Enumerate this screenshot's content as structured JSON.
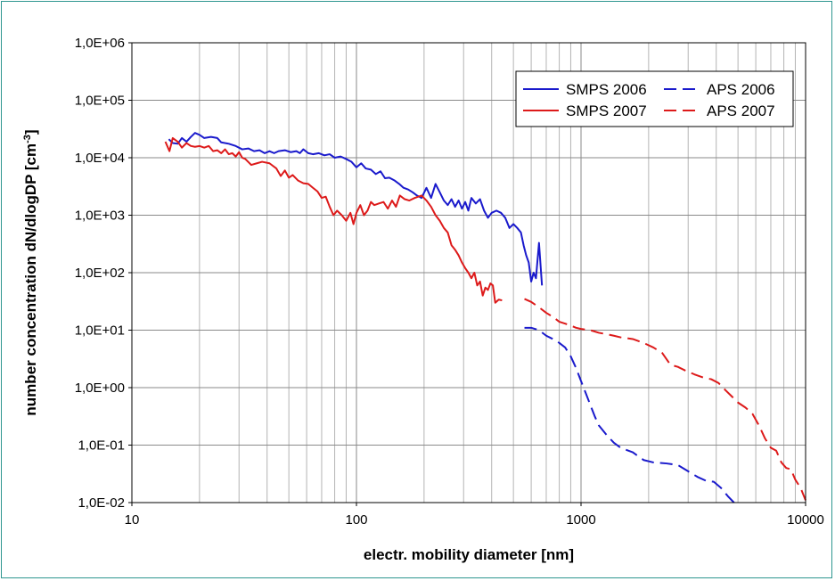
{
  "chart_data": {
    "type": "line",
    "title": "",
    "xlabel": "electr. mobility diameter [nm]",
    "ylabel": "number concentration dN/dlogDP [cm",
    "ylabel_sup": "-3",
    "ylabel_end": "]",
    "x_scale": "log",
    "y_scale": "log",
    "xlim": [
      10,
      10000
    ],
    "ylim": [
      0.01,
      1000000
    ],
    "grid": true,
    "legend_position": "top-right",
    "x_ticks": [
      {
        "value": 10,
        "label": "10"
      },
      {
        "value": 100,
        "label": "100"
      },
      {
        "value": 1000,
        "label": "1000"
      },
      {
        "value": 10000,
        "label": "10000"
      }
    ],
    "y_ticks": [
      {
        "value": 1000000,
        "label": "1,0E+06"
      },
      {
        "value": 100000,
        "label": "1,0E+05"
      },
      {
        "value": 10000,
        "label": "1,0E+04"
      },
      {
        "value": 1000,
        "label": "1,0E+03"
      },
      {
        "value": 100,
        "label": "1,0E+02"
      },
      {
        "value": 10,
        "label": "1,0E+01"
      },
      {
        "value": 1,
        "label": "1,0E+00"
      },
      {
        "value": 0.1,
        "label": "1,0E-01"
      },
      {
        "value": 0.01,
        "label": "1,0E-02"
      }
    ],
    "series": [
      {
        "name": "SMPS 2006",
        "color": "#1a1acc",
        "dash": "solid",
        "points": [
          [
            14.6,
            21000
          ],
          [
            15.2,
            18000
          ],
          [
            16.0,
            17500
          ],
          [
            16.7,
            22000
          ],
          [
            17.5,
            19000
          ],
          [
            18.3,
            23000
          ],
          [
            19.1,
            27000
          ],
          [
            20,
            25000
          ],
          [
            21,
            22000
          ],
          [
            22.5,
            23000
          ],
          [
            24,
            22000
          ],
          [
            25,
            18500
          ],
          [
            27,
            17500
          ],
          [
            29,
            16000
          ],
          [
            31,
            14000
          ],
          [
            33,
            14500
          ],
          [
            35,
            13000
          ],
          [
            37,
            13500
          ],
          [
            39,
            12000
          ],
          [
            41,
            13000
          ],
          [
            43,
            12000
          ],
          [
            45,
            13000
          ],
          [
            48,
            13500
          ],
          [
            51,
            12500
          ],
          [
            54,
            13000
          ],
          [
            56,
            12000
          ],
          [
            58,
            14000
          ],
          [
            61,
            12000
          ],
          [
            64,
            11500
          ],
          [
            68,
            12000
          ],
          [
            72,
            11000
          ],
          [
            76,
            11500
          ],
          [
            80,
            10000
          ],
          [
            85,
            10500
          ],
          [
            90,
            9500
          ],
          [
            95,
            8500
          ],
          [
            100,
            6800
          ],
          [
            105,
            8000
          ],
          [
            110,
            6500
          ],
          [
            116,
            6200
          ],
          [
            122,
            5200
          ],
          [
            128,
            5800
          ],
          [
            134,
            4400
          ],
          [
            140,
            4500
          ],
          [
            148,
            4000
          ],
          [
            155,
            3500
          ],
          [
            162,
            3000
          ],
          [
            170,
            2800
          ],
          [
            178,
            2500
          ],
          [
            186,
            2200
          ],
          [
            195,
            2000
          ],
          [
            205,
            3000
          ],
          [
            215,
            2000
          ],
          [
            225,
            3500
          ],
          [
            235,
            2500
          ],
          [
            245,
            1800
          ],
          [
            255,
            1500
          ],
          [
            265,
            1900
          ],
          [
            275,
            1400
          ],
          [
            285,
            1800
          ],
          [
            295,
            1300
          ],
          [
            305,
            1700
          ],
          [
            315,
            1200
          ],
          [
            325,
            2000
          ],
          [
            340,
            1600
          ],
          [
            355,
            1900
          ],
          [
            370,
            1200
          ],
          [
            385,
            900
          ],
          [
            400,
            1100
          ],
          [
            420,
            1200
          ],
          [
            440,
            1100
          ],
          [
            460,
            900
          ],
          [
            480,
            600
          ],
          [
            500,
            700
          ],
          [
            520,
            600
          ],
          [
            540,
            500
          ],
          [
            555,
            300
          ],
          [
            570,
            200
          ],
          [
            585,
            150
          ],
          [
            600,
            70
          ],
          [
            615,
            100
          ],
          [
            630,
            80
          ],
          [
            650,
            330
          ],
          [
            670,
            60
          ]
        ]
      },
      {
        "name": "SMPS 2007",
        "color": "#dd1a1a",
        "dash": "solid",
        "points": [
          [
            14.1,
            19000
          ],
          [
            14.7,
            13000
          ],
          [
            15.2,
            22000
          ],
          [
            16.0,
            19000
          ],
          [
            16.7,
            15000
          ],
          [
            17.5,
            18000
          ],
          [
            18.3,
            16000
          ],
          [
            19.1,
            15500
          ],
          [
            20,
            16000
          ],
          [
            21,
            15000
          ],
          [
            22,
            16000
          ],
          [
            23,
            13000
          ],
          [
            24,
            13500
          ],
          [
            25,
            12000
          ],
          [
            26,
            14000
          ],
          [
            27,
            11500
          ],
          [
            28,
            12000
          ],
          [
            29,
            10500
          ],
          [
            30,
            12500
          ],
          [
            31,
            10000
          ],
          [
            32,
            9500
          ],
          [
            34,
            7500
          ],
          [
            36,
            8000
          ],
          [
            38,
            8500
          ],
          [
            41,
            8000
          ],
          [
            44,
            6500
          ],
          [
            46,
            4800
          ],
          [
            48,
            6000
          ],
          [
            50,
            4500
          ],
          [
            52,
            5000
          ],
          [
            55,
            4000
          ],
          [
            58,
            3600
          ],
          [
            61,
            3500
          ],
          [
            64,
            3000
          ],
          [
            67,
            2600
          ],
          [
            70,
            2000
          ],
          [
            73,
            2100
          ],
          [
            76,
            1400
          ],
          [
            79,
            1000
          ],
          [
            82,
            1200
          ],
          [
            86,
            1000
          ],
          [
            90,
            800
          ],
          [
            94,
            1100
          ],
          [
            97,
            700
          ],
          [
            100,
            1100
          ],
          [
            104,
            1500
          ],
          [
            108,
            1000
          ],
          [
            112,
            1200
          ],
          [
            116,
            1700
          ],
          [
            120,
            1500
          ],
          [
            126,
            1600
          ],
          [
            132,
            1700
          ],
          [
            138,
            1300
          ],
          [
            144,
            1800
          ],
          [
            150,
            1400
          ],
          [
            156,
            2200
          ],
          [
            164,
            1900
          ],
          [
            172,
            1800
          ],
          [
            182,
            2000
          ],
          [
            195,
            2200
          ],
          [
            205,
            1800
          ],
          [
            215,
            1400
          ],
          [
            225,
            1000
          ],
          [
            235,
            800
          ],
          [
            245,
            600
          ],
          [
            255,
            500
          ],
          [
            265,
            300
          ],
          [
            275,
            250
          ],
          [
            285,
            200
          ],
          [
            295,
            150
          ],
          [
            305,
            120
          ],
          [
            315,
            100
          ],
          [
            325,
            80
          ],
          [
            335,
            100
          ],
          [
            345,
            60
          ],
          [
            355,
            70
          ],
          [
            365,
            40
          ],
          [
            375,
            55
          ],
          [
            385,
            50
          ],
          [
            395,
            65
          ],
          [
            405,
            60
          ],
          [
            415,
            30
          ],
          [
            430,
            34
          ],
          [
            445,
            33
          ]
        ]
      },
      {
        "name": "APS 2006",
        "color": "#1a1acc",
        "dash": "dashed",
        "points": [
          [
            560,
            11
          ],
          [
            600,
            11
          ],
          [
            650,
            10
          ],
          [
            700,
            8
          ],
          [
            750,
            7
          ],
          [
            800,
            6
          ],
          [
            850,
            5
          ],
          [
            900,
            3.5
          ],
          [
            950,
            2.2
          ],
          [
            1000,
            1.3
          ],
          [
            1050,
            0.8
          ],
          [
            1100,
            0.5
          ],
          [
            1150,
            0.32
          ],
          [
            1200,
            0.22
          ],
          [
            1300,
            0.15
          ],
          [
            1400,
            0.11
          ],
          [
            1500,
            0.09
          ],
          [
            1700,
            0.075
          ],
          [
            1900,
            0.055
          ],
          [
            2100,
            0.05
          ],
          [
            2400,
            0.048
          ],
          [
            2700,
            0.045
          ],
          [
            3000,
            0.035
          ],
          [
            3300,
            0.028
          ],
          [
            3600,
            0.024
          ],
          [
            3900,
            0.023
          ],
          [
            4200,
            0.018
          ],
          [
            4500,
            0.013
          ],
          [
            4800,
            0.01
          ]
        ]
      },
      {
        "name": "APS 2007",
        "color": "#dd1a1a",
        "dash": "dashed",
        "points": [
          [
            560,
            35
          ],
          [
            600,
            31
          ],
          [
            650,
            25
          ],
          [
            700,
            20
          ],
          [
            750,
            17
          ],
          [
            800,
            14
          ],
          [
            850,
            13
          ],
          [
            900,
            12
          ],
          [
            950,
            11
          ],
          [
            1000,
            10.5
          ],
          [
            1100,
            10
          ],
          [
            1200,
            9
          ],
          [
            1300,
            8.5
          ],
          [
            1400,
            8
          ],
          [
            1500,
            7.5
          ],
          [
            1700,
            7
          ],
          [
            1900,
            6
          ],
          [
            2100,
            5
          ],
          [
            2300,
            4
          ],
          [
            2500,
            2.5
          ],
          [
            2700,
            2.3
          ],
          [
            2900,
            2
          ],
          [
            3200,
            1.7
          ],
          [
            3500,
            1.5
          ],
          [
            3800,
            1.4
          ],
          [
            4100,
            1.2
          ],
          [
            4400,
            0.9
          ],
          [
            4700,
            0.7
          ],
          [
            5000,
            0.55
          ],
          [
            5400,
            0.45
          ],
          [
            5800,
            0.35
          ],
          [
            6200,
            0.22
          ],
          [
            6600,
            0.13
          ],
          [
            7000,
            0.09
          ],
          [
            7400,
            0.08
          ],
          [
            7800,
            0.05
          ],
          [
            8200,
            0.04
          ],
          [
            8600,
            0.038
          ],
          [
            9000,
            0.025
          ],
          [
            9500,
            0.018
          ],
          [
            10000,
            0.011
          ]
        ]
      }
    ]
  }
}
